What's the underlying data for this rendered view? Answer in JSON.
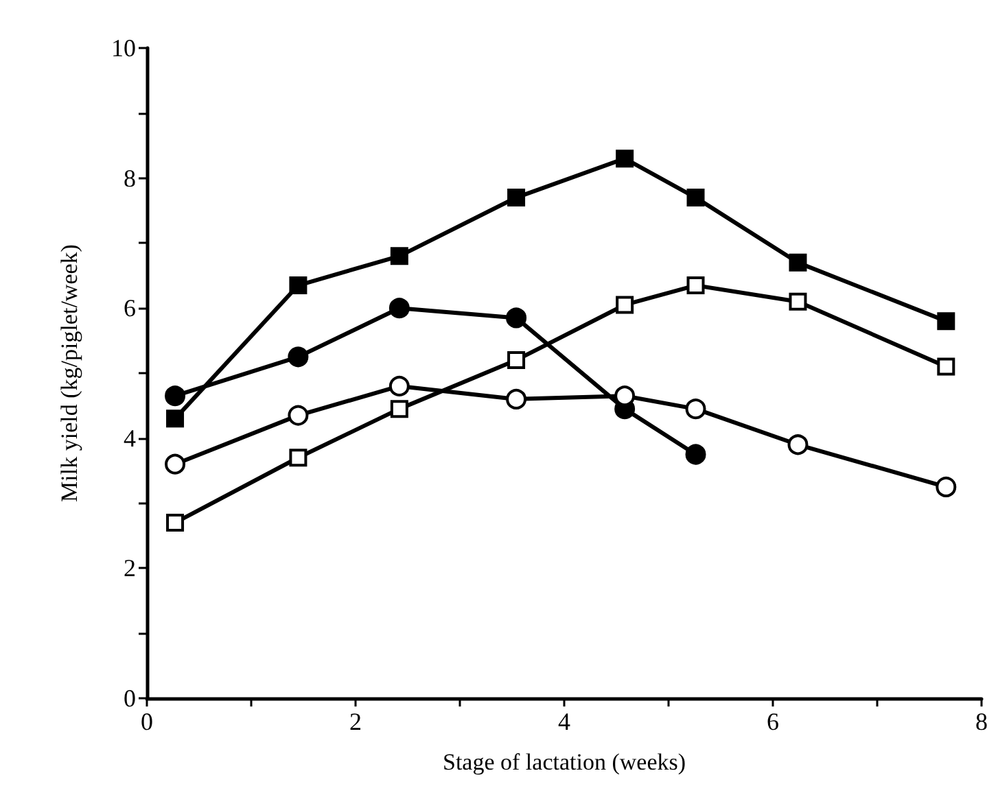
{
  "chart_data": {
    "type": "line",
    "xlabel": "Stage of lactation (weeks)",
    "ylabel": "Milk yield (kg/piglet/week)",
    "x": [
      0.27,
      1.45,
      2.42,
      3.54,
      4.58,
      5.26,
      6.24,
      7.66
    ],
    "series": [
      {
        "color": "#000000",
        "marker": "square",
        "values": [
          4.3,
          6.35,
          6.8,
          7.7,
          8.3,
          7.7,
          6.7,
          5.8
        ]
      },
      {
        "color": "#000000",
        "marker": "circle",
        "values": [
          4.65,
          5.25,
          6.0,
          5.85,
          4.45,
          3.75,
          null,
          null
        ]
      },
      {
        "color": "#000000",
        "marker": "circle",
        "values": [
          3.6,
          4.35,
          4.8,
          4.6,
          4.65,
          4.45,
          3.9,
          3.25
        ]
      },
      {
        "color": "#000000",
        "marker": "square",
        "values": [
          2.7,
          3.7,
          4.45,
          5.2,
          6.05,
          6.35,
          6.1,
          5.1
        ]
      }
    ],
    "xlim": [
      0,
      8
    ],
    "xticks": [
      0,
      {
        "value": 1,
        "label": null
      },
      2,
      {
        "value": 3,
        "label": null
      },
      4,
      {
        "value": 5,
        "label": null
      },
      6,
      {
        "value": 7,
        "label": null
      },
      8
    ],
    "ylim": [
      0,
      10
    ],
    "yticks": [
      0,
      {
        "value": 1,
        "label": null
      },
      2,
      {
        "value": 3,
        "label": null
      },
      4,
      {
        "value": 5,
        "label": null
      },
      6,
      {
        "value": 7,
        "label": null
      },
      8,
      {
        "value": 9,
        "label": null
      },
      10
    ],
    "grid": false,
    "line_style": "solid"
  }
}
